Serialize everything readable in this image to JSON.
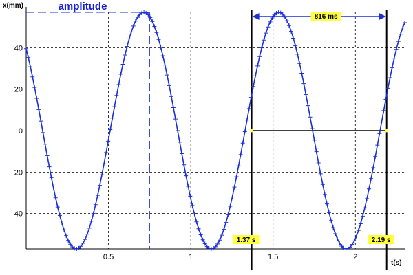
{
  "chart_data": {
    "type": "line",
    "xlabel": "t(s)",
    "ylabel": "x(mm)",
    "xlim": [
      0,
      2.3
    ],
    "ylim": [
      -57,
      57
    ],
    "x_ticks": [
      0.5,
      1,
      1.5,
      2
    ],
    "x_tick_labels": [
      "0.5",
      "1",
      "1.5",
      "2"
    ],
    "y_ticks": [
      -40,
      -20,
      0,
      20,
      40
    ],
    "y_tick_labels": [
      "-40",
      "-20",
      "0",
      "20",
      "40"
    ],
    "grid": true,
    "series": [
      {
        "amplitude": 57,
        "period": 0.82,
        "phase_time": 0.1,
        "t_start": 0,
        "t_end": 2.3,
        "marker": "+",
        "color": "#1a2fd6"
      }
    ],
    "annotations": {
      "amplitude": {
        "label": "amplitude",
        "t": 0.75,
        "value": 57
      },
      "period": {
        "label": "816 ms",
        "t_start": 1.37,
        "t_end": 2.19
      },
      "markers": [
        {
          "t": 1.37,
          "label": "1.37 s"
        },
        {
          "t": 2.19,
          "label": "2.19 s"
        }
      ]
    },
    "colors": {
      "curve": "#1a2fd6",
      "highlight": "#ffff40",
      "grid": "#000000"
    }
  }
}
